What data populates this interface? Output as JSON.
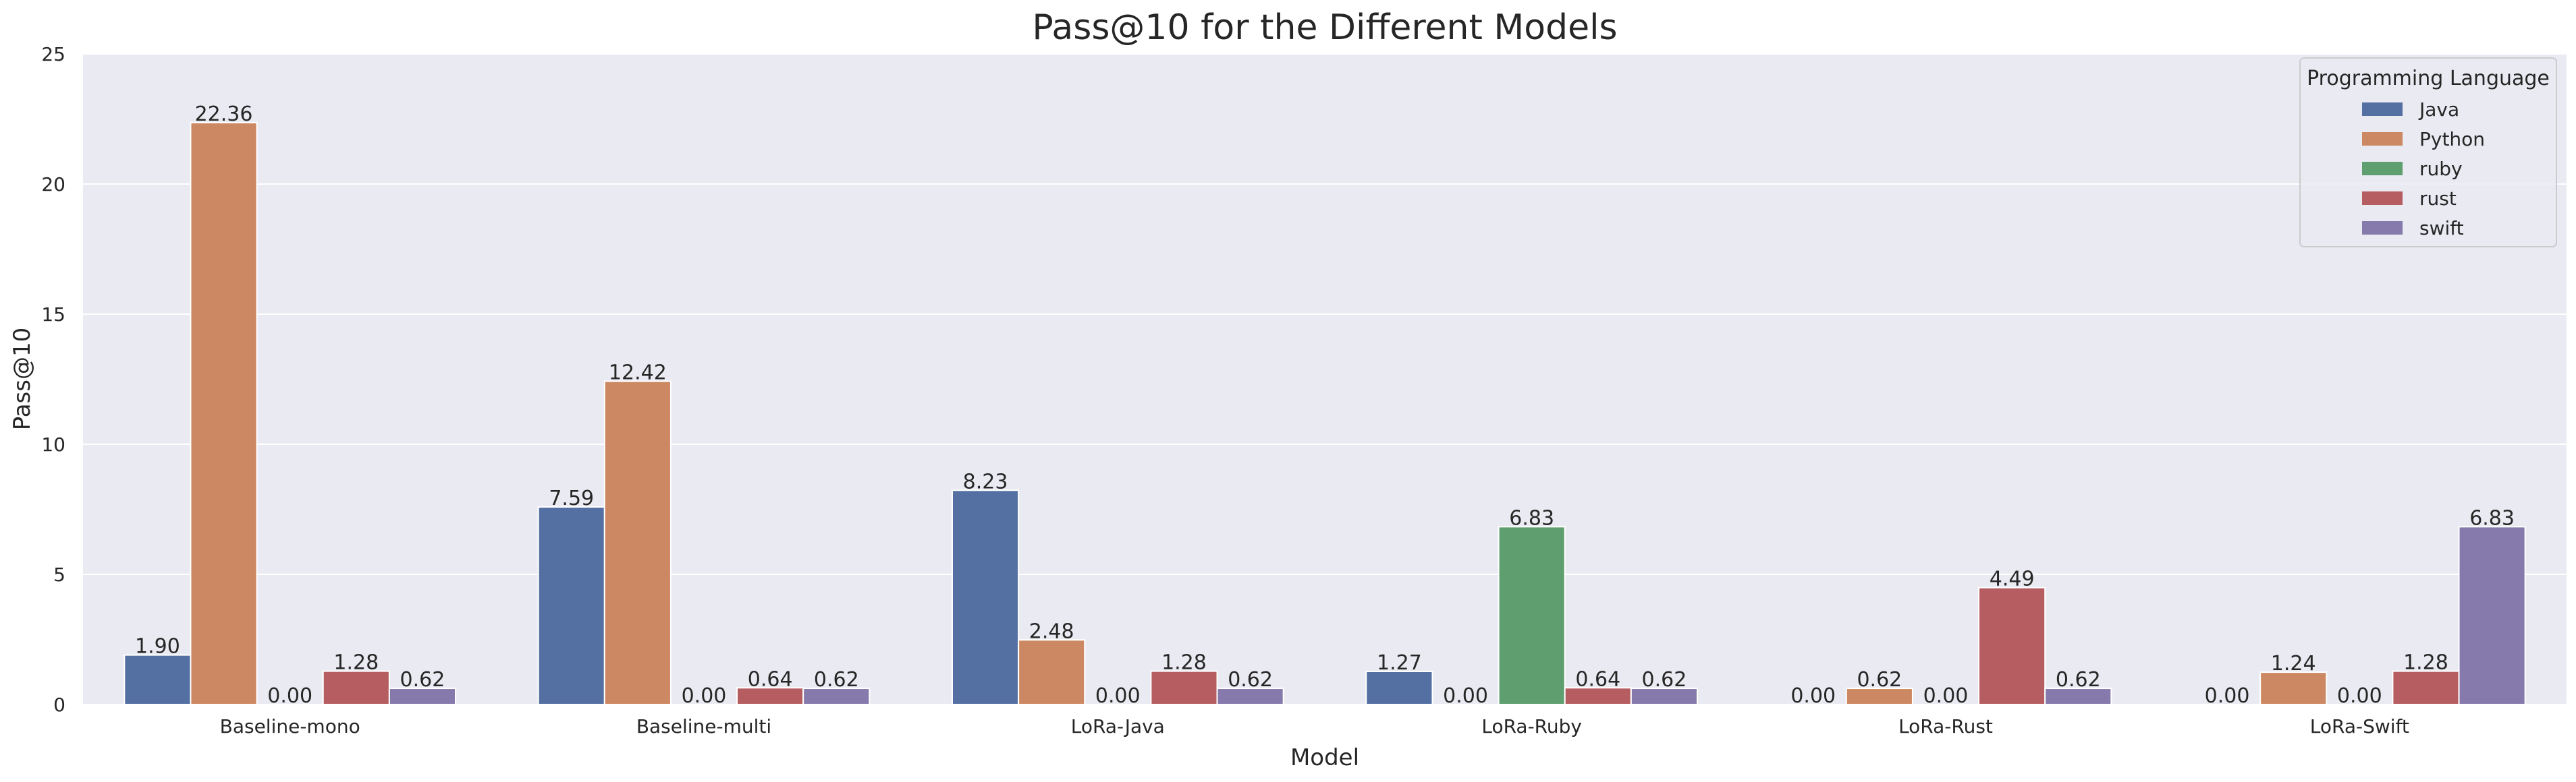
{
  "chart_data": {
    "type": "bar",
    "title": "Pass@10 for the Different Models",
    "xlabel": "Model",
    "ylabel": "Pass@10",
    "ylim": [
      0,
      25
    ],
    "yticks": [
      "0",
      "5",
      "10",
      "15",
      "20",
      "25"
    ],
    "grid": true,
    "legend_title": "Programming Language",
    "legend_position": "top-right",
    "categories": [
      "Baseline-mono",
      "Baseline-multi",
      "LoRa-Java",
      "LoRa-Ruby",
      "LoRa-Rust",
      "LoRa-Swift"
    ],
    "series": [
      {
        "name": "Java",
        "color": "#5470a3",
        "values": [
          1.9,
          7.59,
          8.23,
          1.27,
          0.0,
          0.0
        ],
        "labels": [
          "1.90",
          "7.59",
          "8.23",
          "1.27",
          "0.00",
          "0.00"
        ]
      },
      {
        "name": "Python",
        "color": "#cc8862",
        "values": [
          22.36,
          12.42,
          2.48,
          0.0,
          0.62,
          1.24
        ],
        "labels": [
          "22.36",
          "12.42",
          "2.48",
          "0.00",
          "0.62",
          "1.24"
        ]
      },
      {
        "name": "ruby",
        "color": "#5f9e6e",
        "values": [
          0.0,
          0.0,
          0.0,
          6.83,
          0.0,
          0.0
        ],
        "labels": [
          "0.00",
          "0.00",
          "0.00",
          "6.83",
          "0.00",
          "0.00"
        ]
      },
      {
        "name": "rust",
        "color": "#b55d60",
        "values": [
          1.28,
          0.64,
          1.28,
          0.64,
          4.49,
          1.28
        ],
        "labels": [
          "1.28",
          "0.64",
          "1.28",
          "0.64",
          "4.49",
          "1.28"
        ]
      },
      {
        "name": "swift",
        "color": "#857aab",
        "values": [
          0.62,
          0.62,
          0.62,
          0.62,
          0.62,
          6.83
        ],
        "labels": [
          "0.62",
          "0.62",
          "0.62",
          "0.62",
          "0.62",
          "6.83"
        ]
      }
    ]
  }
}
